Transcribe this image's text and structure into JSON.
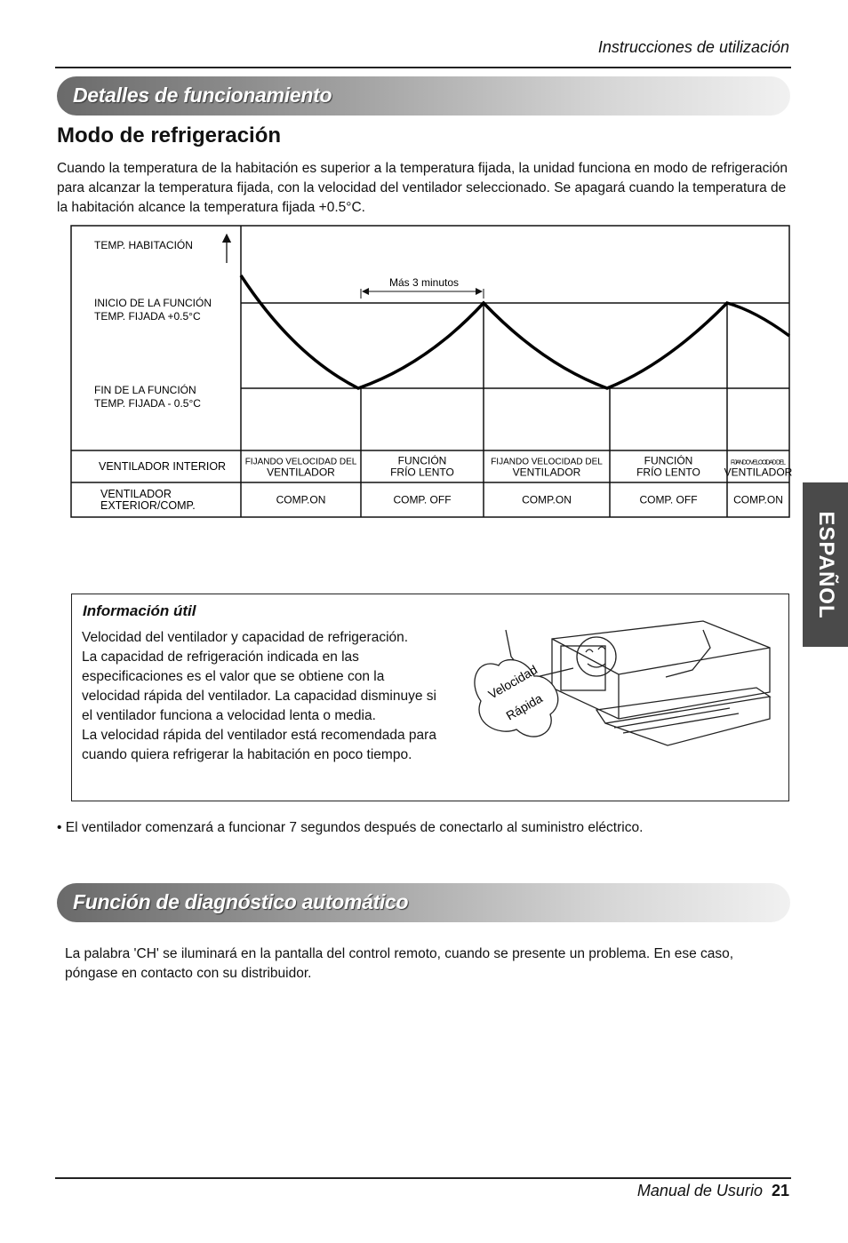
{
  "header": {
    "text": "Instrucciones de utilización"
  },
  "tab": "ESPAÑOL",
  "section1": {
    "banner": "Detalles de funcionamiento",
    "heading": "Modo de refrigeración",
    "paragraph": "Cuando la temperatura de la habitación es superior a la temperatura fijada, la unidad funciona en modo de refrigeración para alcanzar la temperatura fijada, con la velocidad del ventilador seleccionado. Se apagará cuando la temperatura de la habitación alcance la temperatura fijada +0.5°C."
  },
  "diagram": {
    "labels": [
      "TEMP. HABITACIÓN",
      "INICIO DE LA FUNCIÓN",
      "TEMP. FIJADA +0.5°C",
      "FIN DE LA FUNCIÓN",
      "TEMP. FIJADA - 0.5°C"
    ],
    "interval": "Más 3 minutos",
    "rows": [
      {
        "label": [
          "VENTILADOR INTERIOR"
        ],
        "cells": [
          [
            "FIJANDO VELOCIDAD DEL",
            "VENTILADOR"
          ],
          [
            "FUNCIÓN",
            "FRÍO LENTO"
          ],
          [
            "FIJANDO VELOCIDAD DEL",
            "VENTILADOR"
          ],
          [
            "FUNCIÓN",
            "FRÍO LENTO"
          ],
          [
            "FIJANDO VELOCIDAD DEL",
            "VENTILADOR"
          ]
        ]
      },
      {
        "label": [
          "VENTILADOR",
          "EXTERIOR/COMP."
        ],
        "cells": [
          [
            "COMP.ON"
          ],
          [
            "COMP. OFF"
          ],
          [
            "COMP.ON"
          ],
          [
            "COMP. OFF"
          ],
          [
            "COMP.ON"
          ]
        ]
      }
    ]
  },
  "info": {
    "title": "Información útil",
    "paragraphs": [
      "Velocidad del ventilador y capacidad de refrigeración.",
      "La capacidad de refrigeración indicada en las especificaciones es el valor que se obtiene con la velocidad rápida del ventilador. La capacidad disminuye si el ventilador funciona a velocidad lenta o media.",
      "La velocidad rápida del ventilador está recomendada para cuando quiera refrigerar la habitación en poco tiempo."
    ],
    "bubble": [
      "Velocidad",
      "Rápida"
    ]
  },
  "note": "El ventilador comenzará a funcionar 7 segundos después de conectarlo al suministro eléctrico.",
  "section2": {
    "banner": "Función de diagnóstico automático",
    "paragraph": "La palabra 'CH' se iluminará en la pantalla del control remoto, cuando se presente un problema. En ese caso, póngase en contacto con su distribuidor."
  },
  "footer": {
    "text": "Manual de Usurio",
    "page": "21"
  }
}
